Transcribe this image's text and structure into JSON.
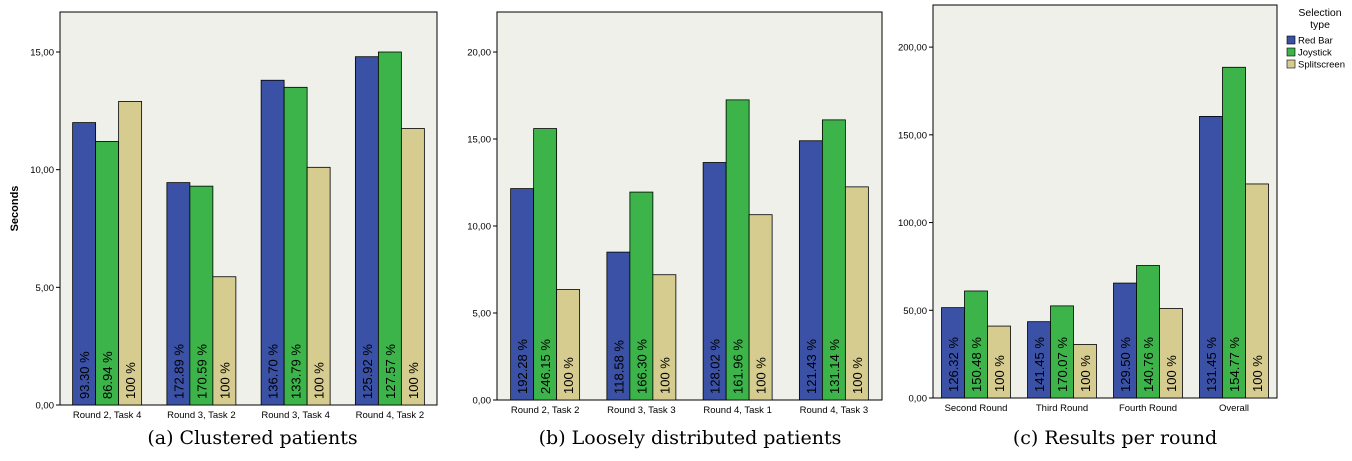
{
  "colors": {
    "red_bar": "#3a51a6",
    "joystick": "#3cb44a",
    "splitscreen": "#d6cc8f",
    "plot_bg": "#f0f0ea"
  },
  "charts": [
    {
      "chart_data": {
        "type": "bar",
        "categories": [
          "Round 2, Task 4",
          "Round 3, Task 2",
          "Round 3, Task 4",
          "Round 4, Task 2"
        ],
        "series": [
          {
            "name": "Red Bar",
            "values": [
              12.0,
              9.45,
              13.8,
              14.8
            ],
            "labels": [
              "93.30 %",
              "172.89 %",
              "136.70 %",
              "125.92 %"
            ]
          },
          {
            "name": "Joystick",
            "values": [
              11.2,
              9.3,
              13.5,
              15.0
            ],
            "labels": [
              "86.94 %",
              "170.59 %",
              "133.79 %",
              "127.57 %"
            ]
          },
          {
            "name": "Splitscreen",
            "values": [
              12.9,
              5.45,
              10.1,
              11.75
            ],
            "labels": [
              "100 %",
              "100 %",
              "100 %",
              "100 %"
            ]
          }
        ],
        "ylabel": "Seconds",
        "ylim": [
          0,
          16.7
        ],
        "yticks": [
          0,
          5,
          10,
          15
        ],
        "ytick_labels": [
          "0,00",
          "5,00",
          "10,00",
          "15,00"
        ]
      },
      "caption": "(a) Clustered patients"
    },
    {
      "chart_data": {
        "type": "bar",
        "categories": [
          "Round 2, Task 2",
          "Round 3, Task 3",
          "Round 4, Task 1",
          "Round 4, Task 3"
        ],
        "series": [
          {
            "name": "Red Bar",
            "values": [
              12.15,
              8.5,
              13.65,
              14.9
            ],
            "labels": [
              "192.28 %",
              "118.58 %",
              "128.02 %",
              "121.43 %"
            ]
          },
          {
            "name": "Joystick",
            "values": [
              15.6,
              11.95,
              17.25,
              16.1
            ],
            "labels": [
              "246.15 %",
              "166.30 %",
              "161.96 %",
              "131.14 %"
            ]
          },
          {
            "name": "Splitscreen",
            "values": [
              6.35,
              7.2,
              10.65,
              12.25
            ],
            "labels": [
              "100 %",
              "100 %",
              "100 %",
              "100 %"
            ]
          }
        ],
        "ylabel": "",
        "ylim": [
          0,
          22.3
        ],
        "yticks": [
          0,
          5,
          10,
          15,
          20
        ],
        "ytick_labels": [
          "0,00",
          "5,00",
          "10,00",
          "15,00",
          "20,00"
        ]
      },
      "caption": "(b) Loosely distributed patients"
    },
    {
      "chart_data": {
        "type": "bar",
        "categories": [
          "Second Round",
          "Third Round",
          "Fourth Round",
          "Overall"
        ],
        "series": [
          {
            "name": "Red Bar",
            "values": [
              51.5,
              43.5,
              65.5,
              160.5
            ],
            "labels": [
              "126.32 %",
              "141.45 %",
              "129.50 %",
              "131.45 %"
            ]
          },
          {
            "name": "Joystick",
            "values": [
              61.0,
              52.5,
              75.5,
              188.5
            ],
            "labels": [
              "150.48 %",
              "170.07 %",
              "140.76 %",
              "154.77 %"
            ]
          },
          {
            "name": "Splitscreen",
            "values": [
              41.0,
              30.5,
              51.0,
              122.0
            ],
            "labels": [
              "100 %",
              "100 %",
              "100 %",
              "100 %"
            ]
          }
        ],
        "ylabel": "",
        "ylim": [
          0,
          224
        ],
        "yticks": [
          0,
          50,
          100,
          150,
          200
        ],
        "ytick_labels": [
          "0,00",
          "50,00",
          "100,00",
          "150,00",
          "200,00"
        ],
        "legend": {
          "title": "Selection type",
          "entries": [
            "Red Bar",
            "Joystick",
            "Splitscreen"
          ],
          "placement": "right"
        }
      },
      "caption": "(c) Results per round"
    }
  ]
}
